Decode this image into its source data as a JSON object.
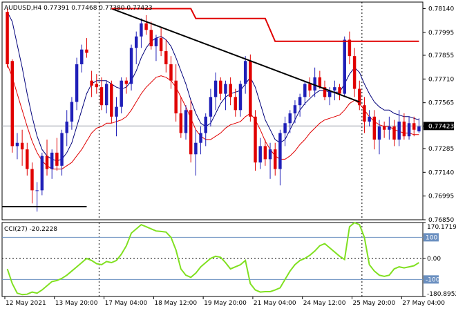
{
  "header": {
    "title_text": "AUDUSD,H4  0.77391 0.77468 0.77380 0.77423"
  },
  "colors": {
    "bull": "#1f1fb8",
    "bear": "#e00000",
    "ma_fast": "#00007a",
    "ma_slow": "#e00000",
    "trend": "#000000",
    "resistance": "#e00000",
    "support": "#000000",
    "cci": "#80e020",
    "cci_level": "#6a8fc0",
    "price_line": "#9aa0aa"
  },
  "chart_data": [
    {
      "type": "candlestick",
      "title": "AUDUSD,H4  0.77391 0.77468 0.77380 0.77423",
      "ylim": [
        0.7685,
        0.7818
      ],
      "y_ticks": [
        "0.78140",
        "0.77995",
        "0.77855",
        "0.77710",
        "0.77565",
        "0.77423",
        "0.77285",
        "0.77140",
        "0.76995",
        "0.76850"
      ],
      "current_price": 0.77423,
      "current_price_label": "0.77423",
      "x_ticks": [
        {
          "index": 0,
          "label": "12 May 2021"
        },
        {
          "index": 10,
          "label": "13 May 20:00"
        },
        {
          "index": 20,
          "label": "17 May 04:00"
        },
        {
          "index": 30,
          "label": "18 May 12:00"
        },
        {
          "index": 40,
          "label": "19 May 20:00"
        },
        {
          "index": 50,
          "label": "21 May 04:00"
        },
        {
          "index": 60,
          "label": "24 May 12:00"
        },
        {
          "index": 70,
          "label": "25 May 20:00"
        },
        {
          "index": 80,
          "label": "27 May 04:00"
        }
      ],
      "separators": [
        0,
        19,
        72
      ],
      "candles": [
        [
          0.7812,
          0.7814,
          0.7778,
          0.778
        ],
        [
          0.7782,
          0.7783,
          0.7726,
          0.773
        ],
        [
          0.773,
          0.7738,
          0.7722,
          0.7732
        ],
        [
          0.7732,
          0.774,
          0.7718,
          0.7728
        ],
        [
          0.7728,
          0.7732,
          0.7712,
          0.7716
        ],
        [
          0.7716,
          0.772,
          0.7695,
          0.7703
        ],
        [
          0.7703,
          0.7708,
          0.769,
          0.7703
        ],
        [
          0.7703,
          0.7726,
          0.77,
          0.7724
        ],
        [
          0.7724,
          0.7734,
          0.7712,
          0.7716
        ],
        [
          0.7716,
          0.7728,
          0.771,
          0.7726
        ],
        [
          0.7726,
          0.7735,
          0.7715,
          0.7718
        ],
        [
          0.7718,
          0.774,
          0.7712,
          0.7738
        ],
        [
          0.7738,
          0.7752,
          0.773,
          0.7745
        ],
        [
          0.7745,
          0.776,
          0.774,
          0.7757
        ],
        [
          0.7757,
          0.7784,
          0.7752,
          0.778
        ],
        [
          0.778,
          0.7792,
          0.7775,
          0.7789
        ],
        [
          0.7789,
          0.7796,
          0.7784,
          0.7787
        ],
        [
          0.777,
          0.7776,
          0.776,
          0.7767
        ],
        [
          0.7768,
          0.7774,
          0.7762,
          0.7766
        ],
        [
          0.7766,
          0.7772,
          0.7752,
          0.7755
        ],
        [
          0.7755,
          0.777,
          0.775,
          0.7768
        ],
        [
          0.7768,
          0.777,
          0.7744,
          0.7748
        ],
        [
          0.7748,
          0.776,
          0.7736,
          0.7754
        ],
        [
          0.7754,
          0.7772,
          0.775,
          0.777
        ],
        [
          0.777,
          0.7772,
          0.7762,
          0.7768
        ],
        [
          0.7768,
          0.7792,
          0.7764,
          0.779
        ],
        [
          0.779,
          0.78,
          0.778,
          0.7797
        ],
        [
          0.7797,
          0.7808,
          0.779,
          0.7805
        ],
        [
          0.7805,
          0.781,
          0.7798,
          0.7801
        ],
        [
          0.7801,
          0.7806,
          0.7789,
          0.7791
        ],
        [
          0.7791,
          0.7798,
          0.7782,
          0.7796
        ],
        [
          0.7796,
          0.7802,
          0.7785,
          0.7788
        ],
        [
          0.7788,
          0.7795,
          0.7775,
          0.778
        ],
        [
          0.778,
          0.7785,
          0.7765,
          0.777
        ],
        [
          0.777,
          0.778,
          0.7745,
          0.775
        ],
        [
          0.775,
          0.776,
          0.7735,
          0.7738
        ],
        [
          0.7738,
          0.7755,
          0.7734,
          0.7752
        ],
        [
          0.7752,
          0.7758,
          0.772,
          0.7725
        ],
        [
          0.7725,
          0.774,
          0.7712,
          0.7732
        ],
        [
          0.7732,
          0.7742,
          0.7725,
          0.7738
        ],
        [
          0.7738,
          0.775,
          0.773,
          0.7748
        ],
        [
          0.7748,
          0.7765,
          0.7742,
          0.776
        ],
        [
          0.776,
          0.7775,
          0.7752,
          0.777
        ],
        [
          0.777,
          0.7772,
          0.7758,
          0.7762
        ],
        [
          0.7762,
          0.777,
          0.7752,
          0.7768
        ],
        [
          0.7768,
          0.7772,
          0.7755,
          0.776
        ],
        [
          0.776,
          0.7765,
          0.7748,
          0.7752
        ],
        [
          0.7752,
          0.777,
          0.7748,
          0.7768
        ],
        [
          0.7768,
          0.7785,
          0.7762,
          0.7782
        ],
        [
          0.7782,
          0.7786,
          0.7745,
          0.7748
        ],
        [
          0.7748,
          0.7752,
          0.7715,
          0.772
        ],
        [
          0.772,
          0.7735,
          0.7716,
          0.773
        ],
        [
          0.773,
          0.7734,
          0.7718,
          0.7722
        ],
        [
          0.7722,
          0.7732,
          0.771,
          0.7728
        ],
        [
          0.7728,
          0.7732,
          0.7712,
          0.7716
        ],
        [
          0.7716,
          0.774,
          0.7706,
          0.7738
        ],
        [
          0.7738,
          0.7748,
          0.773,
          0.7744
        ],
        [
          0.7744,
          0.7752,
          0.7738,
          0.775
        ],
        [
          0.775,
          0.7758,
          0.7744,
          0.7755
        ],
        [
          0.7755,
          0.7762,
          0.7748,
          0.776
        ],
        [
          0.776,
          0.777,
          0.7755,
          0.7768
        ],
        [
          0.7768,
          0.7772,
          0.776,
          0.7764
        ],
        [
          0.7764,
          0.7778,
          0.776,
          0.7772
        ],
        [
          0.7772,
          0.7776,
          0.7765,
          0.7766
        ],
        [
          0.7766,
          0.777,
          0.7758,
          0.776
        ],
        [
          0.776,
          0.7766,
          0.7755,
          0.7764
        ],
        [
          0.7764,
          0.777,
          0.7758,
          0.7766
        ],
        [
          0.7766,
          0.7768,
          0.7758,
          0.7762
        ],
        [
          0.7762,
          0.7797,
          0.776,
          0.7795
        ],
        [
          0.7795,
          0.78,
          0.778,
          0.7785
        ],
        [
          0.7785,
          0.779,
          0.776,
          0.7765
        ],
        [
          0.7765,
          0.777,
          0.7752,
          0.7755
        ],
        [
          0.7755,
          0.776,
          0.7738,
          0.7745
        ],
        [
          0.7745,
          0.7752,
          0.7742,
          0.7748
        ],
        [
          0.7748,
          0.7752,
          0.7728,
          0.7734
        ],
        [
          0.7734,
          0.7746,
          0.7725,
          0.7742
        ],
        [
          0.7742,
          0.7745,
          0.7735,
          0.774
        ],
        [
          0.774,
          0.7748,
          0.7734,
          0.7742
        ],
        [
          0.7742,
          0.7746,
          0.773,
          0.7734
        ],
        [
          0.7734,
          0.7752,
          0.773,
          0.7745
        ],
        [
          0.7745,
          0.775,
          0.7734,
          0.7736
        ],
        [
          0.7736,
          0.7748,
          0.7734,
          0.7744
        ],
        [
          0.7744,
          0.7748,
          0.7736,
          0.774
        ],
        [
          0.7739,
          0.7747,
          0.7738,
          0.7742
        ]
      ],
      "ma_fast": [
        0.7812,
        0.7806,
        0.7792,
        0.7778,
        0.7762,
        0.7748,
        0.7736,
        0.7728,
        0.7724,
        0.7722,
        0.7721,
        0.7722,
        0.7726,
        0.7732,
        0.7742,
        0.7752,
        0.7762,
        0.7768,
        0.777,
        0.777,
        0.777,
        0.7768,
        0.7766,
        0.7765,
        0.7766,
        0.777,
        0.7776,
        0.7784,
        0.779,
        0.7794,
        0.7796,
        0.7797,
        0.7795,
        0.7791,
        0.7784,
        0.7776,
        0.7768,
        0.7758,
        0.775,
        0.7744,
        0.7742,
        0.7744,
        0.775,
        0.7756,
        0.776,
        0.7762,
        0.7763,
        0.7764,
        0.7768,
        0.7772,
        0.7766,
        0.7756,
        0.7746,
        0.774,
        0.7734,
        0.7732,
        0.7734,
        0.774,
        0.7746,
        0.7752,
        0.7756,
        0.7759,
        0.7762,
        0.7764,
        0.7764,
        0.7763,
        0.7763,
        0.7763,
        0.7768,
        0.7774,
        0.7778,
        0.7775,
        0.7768,
        0.7762,
        0.7757,
        0.7754,
        0.7752,
        0.7752,
        0.775,
        0.7749,
        0.7748,
        0.7748,
        0.7747,
        0.7746
      ],
      "ma_slow": [
        0.778,
        0.7772,
        0.7762,
        0.7752,
        0.7742,
        0.7733,
        0.7726,
        0.7721,
        0.7718,
        0.7716,
        0.7716,
        0.7716,
        0.7718,
        0.772,
        0.7724,
        0.7728,
        0.7733,
        0.7738,
        0.7741,
        0.7742,
        0.7744,
        0.7744,
        0.7745,
        0.7746,
        0.7748,
        0.7752,
        0.7757,
        0.7762,
        0.7766,
        0.7769,
        0.7772,
        0.7773,
        0.7772,
        0.777,
        0.7766,
        0.776,
        0.7754,
        0.7747,
        0.774,
        0.7736,
        0.7734,
        0.7734,
        0.7736,
        0.7738,
        0.7741,
        0.7743,
        0.7744,
        0.7745,
        0.7748,
        0.775,
        0.7746,
        0.774,
        0.7733,
        0.7728,
        0.7724,
        0.7722,
        0.7722,
        0.7724,
        0.7727,
        0.7731,
        0.7734,
        0.7738,
        0.7741,
        0.7744,
        0.7746,
        0.7747,
        0.7748,
        0.7749,
        0.7752,
        0.7756,
        0.7758,
        0.7756,
        0.7752,
        0.7748,
        0.7745,
        0.7743,
        0.7742,
        0.7742,
        0.774,
        0.7739,
        0.7738,
        0.7738,
        0.7737,
        0.7737
      ],
      "trendline": [
        [
          21,
          0.7814
        ],
        [
          71,
          0.7757
        ]
      ],
      "resistance_line": [
        [
          21,
          0.7814
        ],
        [
          37,
          0.7814
        ],
        [
          38,
          0.7808
        ],
        [
          52,
          0.7808
        ],
        [
          54,
          0.7794
        ],
        [
          83,
          0.7794
        ]
      ],
      "support_line": [
        [
          0,
          0.7693
        ],
        [
          16,
          0.7693
        ]
      ]
    },
    {
      "type": "line",
      "title": "CCI(27) -20.2228",
      "ylim": [
        -180.8952,
        170.1719
      ],
      "y_ticks": [
        "170.1719",
        "100",
        "0.00",
        "-100",
        "-180.8952"
      ],
      "levels": [
        100,
        0,
        -100
      ],
      "series": [
        {
          "name": "CCI(27)",
          "values": [
            -50,
            -120,
            -165,
            -172,
            -170,
            -160,
            -165,
            -150,
            -130,
            -110,
            -105,
            -95,
            -80,
            -60,
            -40,
            -20,
            0,
            -10,
            -25,
            -30,
            -15,
            -20,
            -10,
            20,
            60,
            120,
            140,
            160,
            150,
            140,
            130,
            128,
            125,
            100,
            40,
            -50,
            -80,
            -90,
            -70,
            -40,
            -20,
            0,
            10,
            5,
            -20,
            -50,
            -40,
            -30,
            -10,
            -120,
            -150,
            -160,
            -158,
            -158,
            -150,
            -140,
            -100,
            -60,
            -30,
            -10,
            0,
            15,
            35,
            60,
            70,
            50,
            30,
            10,
            -5,
            150,
            170,
            160,
            100,
            -30,
            -60,
            -80,
            -85,
            -80,
            -50,
            -40,
            -45,
            -40,
            -35,
            -20
          ]
        }
      ]
    }
  ]
}
